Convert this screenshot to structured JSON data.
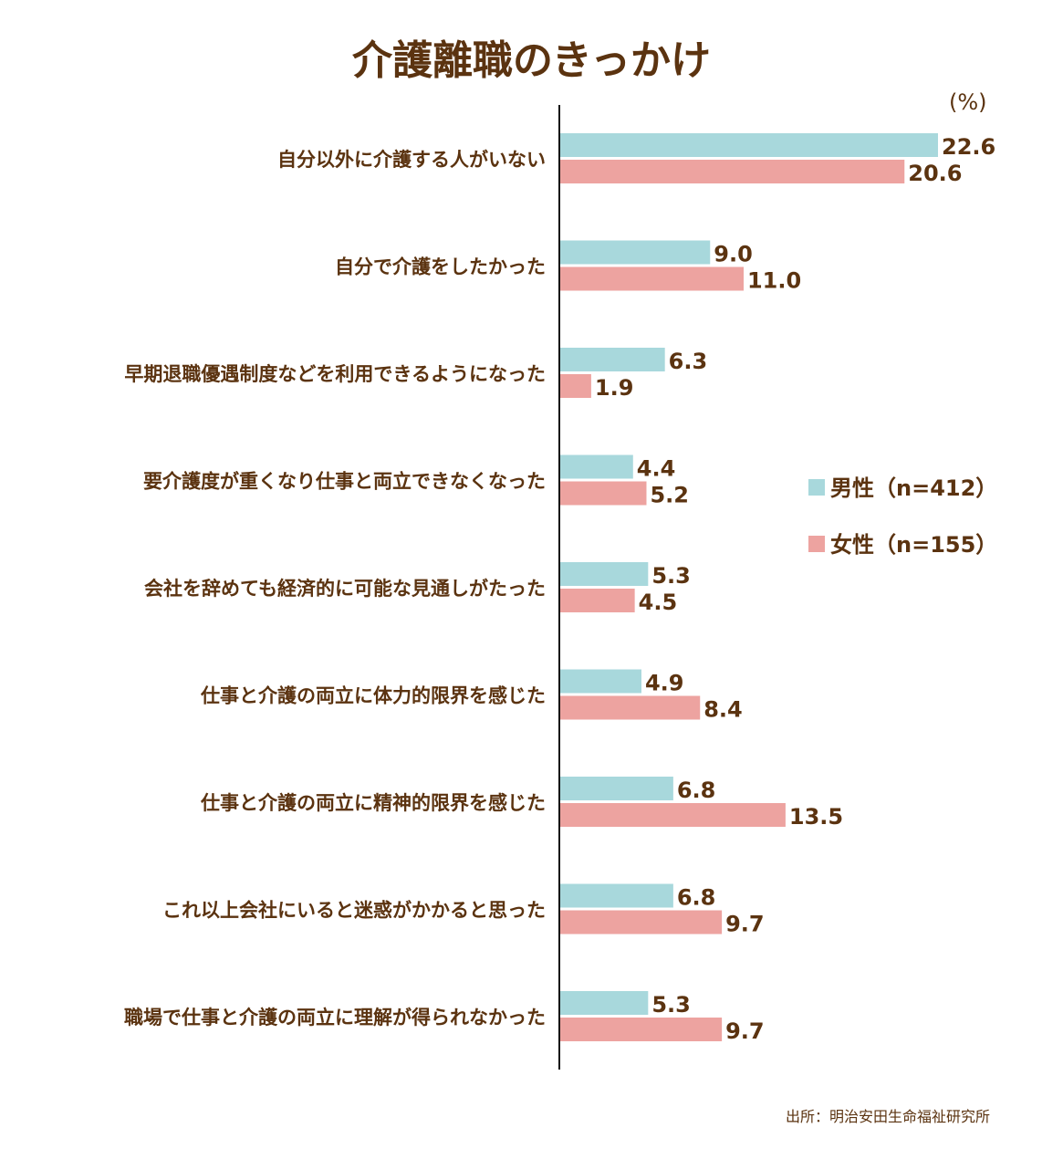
{
  "chart_data": {
    "type": "bar",
    "orientation": "horizontal",
    "title": "介護離職のきっかけ",
    "unit": "(%)",
    "categories": [
      "自分以外に介護する人がいない",
      "自分で介護をしたかった",
      "早期退職優遇制度などを利用できるようになった",
      "要介護度が重くなり仕事と両立できなくなった",
      "会社を辞めても経済的に可能な見通しがたった",
      "仕事と介護の両立に体力的限界を感じた",
      "仕事と介護の両立に精神的限界を感じた",
      "これ以上会社にいると迷惑がかかると思った",
      "職場で仕事と介護の両立に理解が得られなかった"
    ],
    "series": [
      {
        "name": "男性（n=412）",
        "color": "#a8d8dc",
        "values": [
          22.6,
          9.0,
          6.3,
          4.4,
          5.3,
          4.9,
          6.8,
          6.8,
          5.3
        ],
        "labels": [
          "22.6",
          "9.0",
          "6.3",
          "4.4",
          "5.3",
          "4.9",
          "6.8",
          "6.8",
          "5.3"
        ]
      },
      {
        "name": "女性（n=155）",
        "color": "#eda3a0",
        "values": [
          20.6,
          11.0,
          1.9,
          5.2,
          4.5,
          8.4,
          13.5,
          9.7,
          9.7
        ],
        "labels": [
          "20.6",
          "11.0",
          "1.9",
          "5.2",
          "4.5",
          "8.4",
          "13.5",
          "9.7",
          "9.7"
        ]
      }
    ],
    "xlim": [
      0,
      25
    ],
    "grid": false,
    "legend_position": "right",
    "source": "出所：明治安田生命福祉研究所",
    "text_color": "#5b3310"
  }
}
